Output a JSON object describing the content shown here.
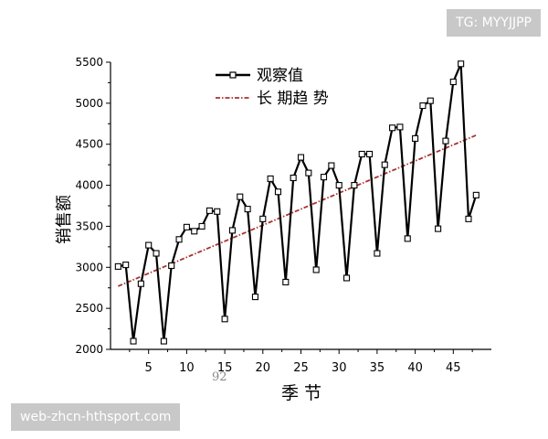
{
  "badges": {
    "top": "TG: MYYJJPP",
    "bottom": "web-zhcn-hthsport.com"
  },
  "stray_label": "92",
  "chart_data": {
    "type": "line",
    "title": "",
    "xlabel": "季 节",
    "ylabel": "销售额",
    "xlim": [
      0,
      50
    ],
    "ylim": [
      2000,
      5500
    ],
    "xticks": [
      5,
      10,
      15,
      20,
      25,
      30,
      35,
      40,
      45
    ],
    "yticks": [
      2000,
      2500,
      3000,
      3500,
      4000,
      4500,
      5000,
      5500
    ],
    "grid": false,
    "legend": "top-center",
    "colors": {
      "observed": "#000000",
      "trend": "#a8322e"
    },
    "series": [
      {
        "name": "观察值",
        "style": "solid-with-square-markers",
        "x": [
          1,
          2,
          3,
          4,
          5,
          6,
          7,
          8,
          9,
          10,
          11,
          12,
          13,
          14,
          15,
          16,
          17,
          18,
          19,
          20,
          21,
          22,
          23,
          24,
          25,
          26,
          27,
          28,
          29,
          30,
          31,
          32,
          33,
          34,
          35,
          36,
          37,
          38,
          39,
          40,
          41,
          42,
          43,
          44,
          45,
          46,
          47,
          48
        ],
        "values": [
          3010,
          3030,
          2100,
          2800,
          3270,
          3170,
          2100,
          3020,
          3340,
          3490,
          3440,
          3500,
          3690,
          3680,
          2370,
          3450,
          3860,
          3710,
          2640,
          3590,
          4080,
          3920,
          2820,
          4090,
          4340,
          4150,
          2970,
          4100,
          4240,
          4000,
          2870,
          4000,
          4380,
          4380,
          3170,
          4250,
          4700,
          4710,
          3350,
          4570,
          4970,
          5030,
          3470,
          4540,
          5260,
          5480,
          3590,
          3880
        ]
      },
      {
        "name": "长 期趋 势",
        "style": "dash-dot",
        "x": [
          1,
          48
        ],
        "values": [
          2770,
          4610
        ]
      }
    ]
  }
}
